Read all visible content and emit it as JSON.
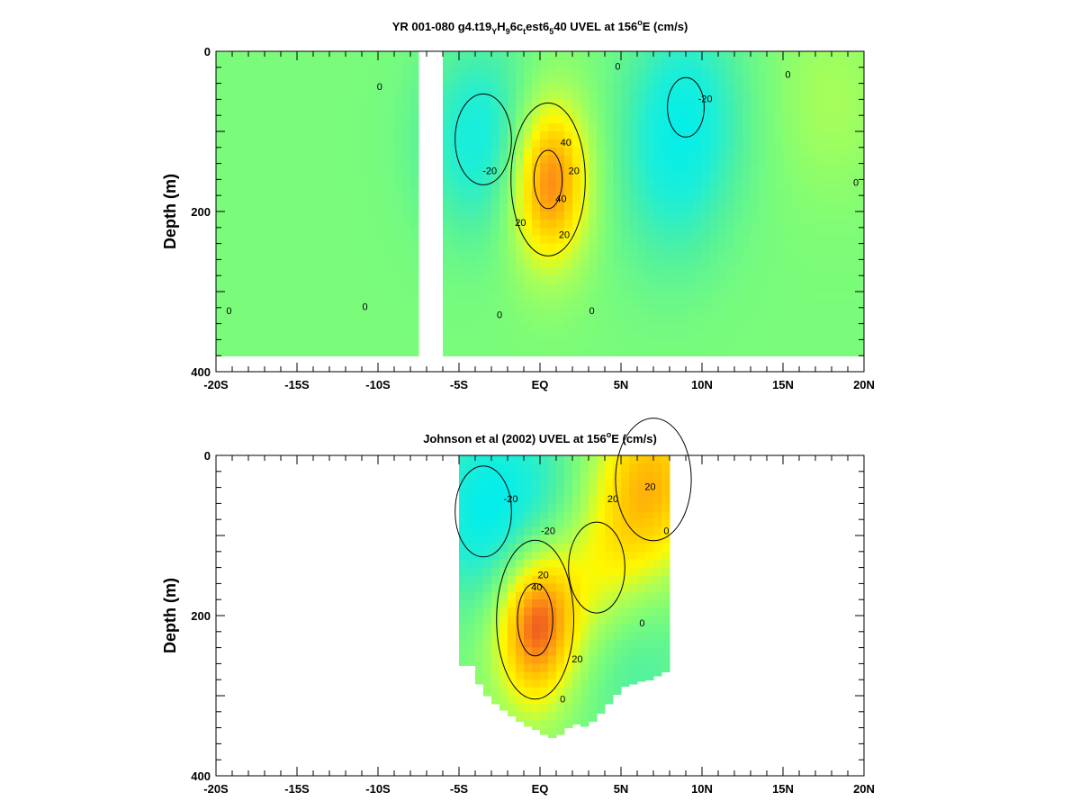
{
  "chart_data": [
    {
      "type": "heatmap",
      "title_parts": [
        "YR 001-080 g4.t19",
        "Y",
        "H",
        "9",
        "6c",
        "t",
        "est6",
        "5",
        "40 UVEL at 156",
        "o",
        "E (cm/s)"
      ],
      "xlabel": "",
      "ylabel": "Depth (m)",
      "xlim": [
        -20,
        20
      ],
      "ylim": [
        400,
        0
      ],
      "x_ticks": [
        -20,
        -15,
        -10,
        -5,
        0,
        5,
        10,
        15,
        20
      ],
      "x_tick_labels": [
        "-20S",
        "-15S",
        "-10S",
        "-5S",
        "EQ",
        "5N",
        "10N",
        "15N",
        "20N"
      ],
      "y_ticks": [
        0,
        200,
        400
      ],
      "y_tick_labels": [
        "0",
        "200",
        "400"
      ],
      "grid": false,
      "data_extent": {
        "lat": [
          -20,
          20
        ],
        "depth": [
          0,
          380
        ]
      },
      "missing_lat_band": [
        -7.5,
        -6.2
      ],
      "features": [
        {
          "kind": "max",
          "lat": 0.5,
          "depth": 160,
          "value": 45
        },
        {
          "kind": "min",
          "lat": -3.5,
          "depth": 110,
          "value": -25
        },
        {
          "kind": "min",
          "lat": 9,
          "depth": 70,
          "value": -22
        },
        {
          "kind": "min",
          "lat": 8,
          "depth": 180,
          "value": -12
        },
        {
          "kind": "max",
          "lat": 18,
          "depth": 60,
          "value": 8
        }
      ],
      "contour_labels": [
        {
          "text": "0",
          "lat": -19.2,
          "depth": 325
        },
        {
          "text": "0",
          "lat": -10.8,
          "depth": 320
        },
        {
          "text": "0",
          "lat": -9.9,
          "depth": 45
        },
        {
          "text": "0",
          "lat": -2.5,
          "depth": 330
        },
        {
          "text": "0",
          "lat": 3.2,
          "depth": 325
        },
        {
          "text": "0",
          "lat": 4.8,
          "depth": 20
        },
        {
          "text": "0",
          "lat": 15.3,
          "depth": 30
        },
        {
          "text": "0",
          "lat": 19.5,
          "depth": 165
        },
        {
          "text": "-20",
          "lat": -3.1,
          "depth": 150
        },
        {
          "text": "-20",
          "lat": 10.2,
          "depth": 60
        },
        {
          "text": "20",
          "lat": -1.2,
          "depth": 215
        },
        {
          "text": "20",
          "lat": 2.1,
          "depth": 150
        },
        {
          "text": "20",
          "lat": 1.5,
          "depth": 230
        },
        {
          "text": "40",
          "lat": 1.6,
          "depth": 115
        },
        {
          "text": "40",
          "lat": 1.3,
          "depth": 185
        }
      ]
    },
    {
      "type": "heatmap",
      "title_parts": [
        "Johnson et al (2002) UVEL at 156",
        "o",
        "E (cm/s)"
      ],
      "xlabel": "",
      "ylabel": "Depth (m)",
      "xlim": [
        -20,
        20
      ],
      "ylim": [
        400,
        0
      ],
      "x_ticks": [
        -20,
        -15,
        -10,
        -5,
        0,
        5,
        10,
        15,
        20
      ],
      "x_tick_labels": [
        "-20S",
        "-15S",
        "-10S",
        "-5S",
        "EQ",
        "5N",
        "10N",
        "15N",
        "20N"
      ],
      "y_ticks": [
        0,
        200,
        400
      ],
      "y_tick_labels": [
        "0",
        "200",
        "400"
      ],
      "grid": false,
      "data_extent": {
        "lat": [
          -5,
          8
        ]
      },
      "bottom_depth": [
        [
          -5,
          262
        ],
        [
          -4.5,
          262
        ],
        [
          -4,
          285
        ],
        [
          -3.5,
          300
        ],
        [
          -3,
          310
        ],
        [
          -2.5,
          318
        ],
        [
          -2,
          325
        ],
        [
          -1.5,
          332
        ],
        [
          -1,
          338
        ],
        [
          -0.5,
          342
        ],
        [
          0,
          348
        ],
        [
          0.5,
          352
        ],
        [
          1,
          348
        ],
        [
          1.5,
          340
        ],
        [
          2,
          335
        ],
        [
          2.5,
          338
        ],
        [
          3,
          332
        ],
        [
          3.5,
          322
        ],
        [
          4,
          310
        ],
        [
          4.5,
          298
        ],
        [
          5,
          288
        ],
        [
          5.5,
          285
        ],
        [
          6,
          282
        ],
        [
          6.5,
          280
        ],
        [
          7,
          275
        ],
        [
          7.5,
          270
        ],
        [
          8,
          262
        ]
      ],
      "features": [
        {
          "kind": "max",
          "lat": -0.3,
          "depth": 205,
          "value": 48
        },
        {
          "kind": "max",
          "lat": 3.5,
          "depth": 140,
          "value": 25
        },
        {
          "kind": "max",
          "lat": 7,
          "depth": 30,
          "value": 30
        },
        {
          "kind": "min",
          "lat": -3.5,
          "depth": 70,
          "value": -25
        },
        {
          "kind": "min",
          "lat": 0.5,
          "depth": 80,
          "value": -20
        },
        {
          "kind": "min",
          "lat": 5.5,
          "depth": 240,
          "value": -15
        }
      ],
      "contour_labels": [
        {
          "text": "-20",
          "lat": -1.8,
          "depth": 55
        },
        {
          "text": "-20",
          "lat": 0.5,
          "depth": 95
        },
        {
          "text": "20",
          "lat": 0.2,
          "depth": 150
        },
        {
          "text": "20",
          "lat": 4.5,
          "depth": 55
        },
        {
          "text": "20",
          "lat": 6.8,
          "depth": 40
        },
        {
          "text": "20",
          "lat": 2.3,
          "depth": 255
        },
        {
          "text": "40",
          "lat": -0.2,
          "depth": 165
        },
        {
          "text": "0",
          "lat": 6.3,
          "depth": 210
        },
        {
          "text": "0",
          "lat": 7.8,
          "depth": 95
        },
        {
          "text": "0",
          "lat": 1.4,
          "depth": 305
        }
      ]
    }
  ]
}
